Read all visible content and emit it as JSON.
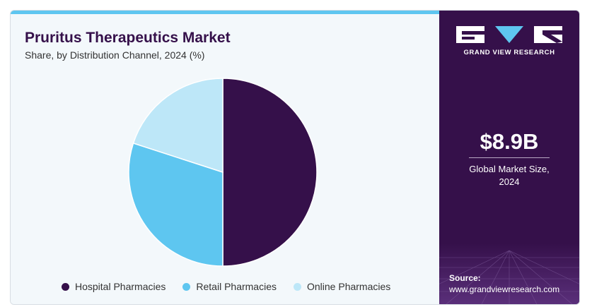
{
  "chart_data": {
    "type": "pie",
    "title": "Pruritus Therapeutics Market",
    "subtitle": "Share, by Distribution Channel, 2024 (%)",
    "categories": [
      "Hospital Pharmacies",
      "Retail Pharmacies",
      "Online Pharmacies"
    ],
    "values": [
      50,
      30,
      20
    ],
    "colors": [
      "#35104a",
      "#5ec6f0",
      "#bde7f8"
    ],
    "legend_position": "bottom"
  },
  "brand": {
    "name": "GRAND VIEW RESEARCH"
  },
  "stats": {
    "value": "$8.9B",
    "label_line1": "Global Market Size,",
    "label_line2": "2024"
  },
  "source": {
    "label": "Source:",
    "url": "www.grandviewresearch.com"
  },
  "colors": {
    "panel": "#35104a",
    "accent": "#5ec6f0",
    "background": "#f3f8fb"
  }
}
